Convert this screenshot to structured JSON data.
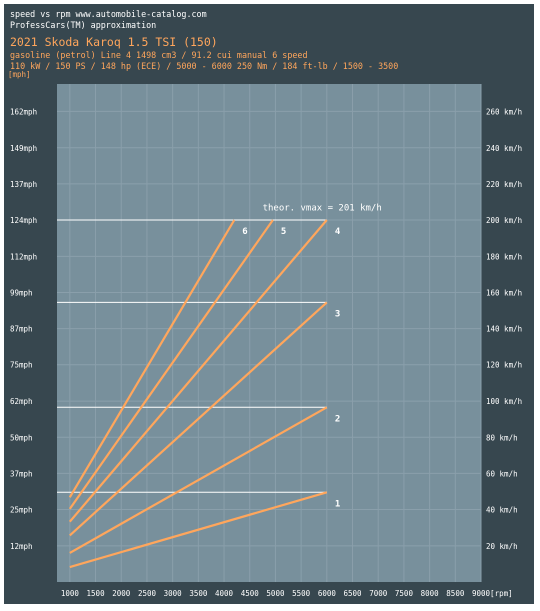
{
  "header": {
    "line1": "speed vs rpm www.automobile-catalog.com",
    "line2": "ProfessCars(TM) approximation",
    "line3": "2021 Skoda Karoq 1.5 TSI (150)",
    "line4": "gasoline (petrol) Line 4 1498 cm3 / 91.2 cui manual 6 speed",
    "line5": "110 kW / 150 PS / 148 hp  (ECE) / 5000 - 6000 250 Nm / 184 ft-lb / 1500 - 3500",
    "y_unit_label": "[mph]"
  },
  "colors": {
    "background": "#37474f",
    "plot": "#78909c",
    "grid": "#8a9fab",
    "line": "#ffa65c",
    "text": "#ffffff",
    "accent_text": "#ffa65c"
  },
  "chart_data": {
    "type": "line",
    "title": "2021 Skoda Karoq 1.5 TSI (150)",
    "xlabel": "[rpm]",
    "ylabel": "[mph]",
    "xlim": [
      750,
      9000
    ],
    "ylim": [
      0,
      171
    ],
    "grid": true,
    "x_ticks": [
      1000,
      1500,
      2000,
      2500,
      3000,
      3500,
      4000,
      4500,
      5000,
      5500,
      6000,
      6500,
      7000,
      7500,
      8000,
      8500,
      9000
    ],
    "x_tick_labels": [
      "1000",
      "1500",
      "2000",
      "2500",
      "3000",
      "3500",
      "4000",
      "4500",
      "5000",
      "5500",
      "6000",
      "6500",
      "7000",
      "7500",
      "8000",
      "8500",
      "9000[rpm]"
    ],
    "y_ticks": [
      12.4,
      24.9,
      37.3,
      49.7,
      62.1,
      74.6,
      87.0,
      99.4,
      111.8,
      124.3,
      136.7,
      149.1,
      161.6
    ],
    "y_tick_labels": [
      "12mph",
      "25mph",
      "37mph",
      "50mph",
      "62mph",
      "75mph",
      "87mph",
      "99mph",
      "112mph",
      "124mph",
      "137mph",
      "149mph",
      "162mph"
    ],
    "y2_ticks": [
      12.4,
      24.9,
      37.3,
      49.7,
      62.1,
      74.6,
      87.0,
      99.4,
      111.8,
      124.3,
      136.7,
      149.1,
      161.6
    ],
    "y2_tick_labels": [
      "20 km/h",
      "40 km/h",
      "60 km/h",
      "80 km/h",
      "100 km/h",
      "120 km/h",
      "140 km/h",
      "160 km/h",
      "180 km/h",
      "200 km/h",
      "220 km/h",
      "240 km/h",
      "260 km/h"
    ],
    "series": [
      {
        "name": "1",
        "x": [
          1000,
          6000
        ],
        "y": [
          5.1,
          30.8
        ]
      },
      {
        "name": "2",
        "x": [
          1000,
          6000
        ],
        "y": [
          10.0,
          60.0
        ]
      },
      {
        "name": "3",
        "x": [
          1000,
          6000
        ],
        "y": [
          16.0,
          96.0
        ]
      },
      {
        "name": "4",
        "x": [
          1000,
          6000
        ],
        "y": [
          20.7,
          124.3
        ]
      },
      {
        "name": "5",
        "x": [
          1000,
          4950
        ],
        "y": [
          25.1,
          124.3
        ]
      },
      {
        "name": "6",
        "x": [
          1000,
          4200
        ],
        "y": [
          29.1,
          124.3
        ]
      }
    ],
    "shift_levels": [
      {
        "y": 30.8,
        "x_end": 6000
      },
      {
        "y": 60.0,
        "x_end": 6000
      },
      {
        "y": 96.0,
        "x_end": 6000
      },
      {
        "y": 124.3,
        "x_end": 6000
      }
    ],
    "annotation": {
      "text": "theor. vmax = 201 km/h",
      "x": 4750,
      "y": 127.5
    }
  }
}
